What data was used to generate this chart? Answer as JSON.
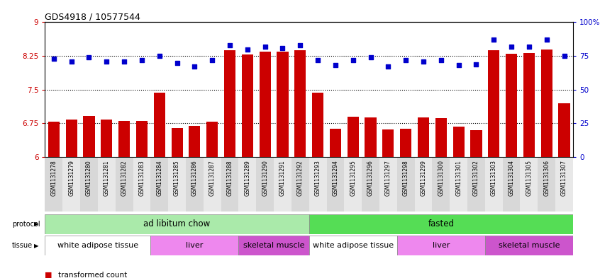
{
  "title": "GDS4918 / 10577544",
  "samples": [
    "GSM1131278",
    "GSM1131279",
    "GSM1131280",
    "GSM1131281",
    "GSM1131282",
    "GSM1131283",
    "GSM1131284",
    "GSM1131285",
    "GSM1131286",
    "GSM1131287",
    "GSM1131288",
    "GSM1131289",
    "GSM1131290",
    "GSM1131291",
    "GSM1131292",
    "GSM1131293",
    "GSM1131294",
    "GSM1131295",
    "GSM1131296",
    "GSM1131297",
    "GSM1131298",
    "GSM1131299",
    "GSM1131300",
    "GSM1131301",
    "GSM1131302",
    "GSM1131303",
    "GSM1131304",
    "GSM1131305",
    "GSM1131306",
    "GSM1131307"
  ],
  "bar_values": [
    6.79,
    6.84,
    6.92,
    6.83,
    6.81,
    6.8,
    7.44,
    6.65,
    6.69,
    6.78,
    8.37,
    8.29,
    8.35,
    8.34,
    8.38,
    7.44,
    6.63,
    6.9,
    6.88,
    6.62,
    6.63,
    6.88,
    6.87,
    6.67,
    6.6,
    8.38,
    8.3,
    8.31,
    8.39,
    7.2
  ],
  "blue_dot_values": [
    73,
    71,
    74,
    71,
    71,
    72,
    75,
    70,
    67,
    72,
    83,
    80,
    82,
    81,
    83,
    72,
    68,
    72,
    74,
    67,
    72,
    71,
    72,
    68,
    69,
    87,
    82,
    82,
    87,
    75
  ],
  "ylim_left": [
    6,
    9
  ],
  "ylim_right": [
    0,
    100
  ],
  "yticks_left": [
    6,
    6.75,
    7.5,
    8.25,
    9
  ],
  "yticks_right": [
    0,
    25,
    50,
    75,
    100
  ],
  "bar_color": "#cc0000",
  "dot_color": "#0000cc",
  "bg_color": "#ffffff",
  "xtick_bg_even": "#d8d8d8",
  "xtick_bg_odd": "#e8e8e8",
  "protocol_groups": [
    {
      "label": "ad libitum chow",
      "start": 0,
      "end": 15,
      "color": "#aaeaaa"
    },
    {
      "label": "fasted",
      "start": 15,
      "end": 30,
      "color": "#55dd55"
    }
  ],
  "tissue_groups": [
    {
      "label": "white adipose tissue",
      "start": 0,
      "end": 6,
      "color": "#ffffff"
    },
    {
      "label": "liver",
      "start": 6,
      "end": 11,
      "color": "#ee88ee"
    },
    {
      "label": "skeletal muscle",
      "start": 11,
      "end": 15,
      "color": "#cc55cc"
    },
    {
      "label": "white adipose tissue",
      "start": 15,
      "end": 20,
      "color": "#ffffff"
    },
    {
      "label": "liver",
      "start": 20,
      "end": 25,
      "color": "#ee88ee"
    },
    {
      "label": "skeletal muscle",
      "start": 25,
      "end": 30,
      "color": "#cc55cc"
    }
  ]
}
